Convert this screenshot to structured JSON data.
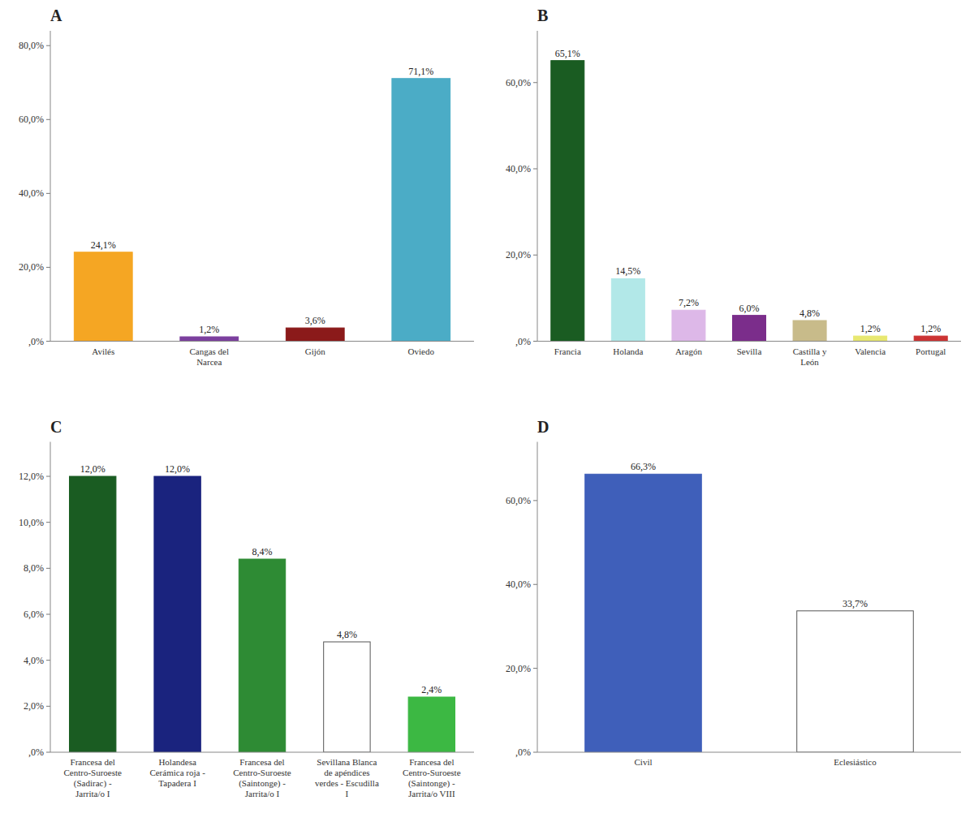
{
  "chart_data": [
    {
      "type": "bar",
      "title": "A",
      "categories": [
        "Avilés",
        "Cangas del\nNarcea",
        "Gijón",
        "Oviedo"
      ],
      "values": [
        24.1,
        1.2,
        3.6,
        71.1
      ],
      "value_labels": [
        "24,1%",
        "1,2%",
        "3,6%",
        "71,1%"
      ],
      "colors": [
        "#F5A623",
        "#7B3F9E",
        "#8B1A1A",
        "#4BACC6"
      ],
      "ylim": [
        0,
        84
      ],
      "yticks": [
        {
          "value": 0,
          "label": ",0%"
        },
        {
          "value": 20,
          "label": "20,0%"
        },
        {
          "value": 40,
          "label": "40,0%"
        },
        {
          "value": 60,
          "label": "60,0%"
        },
        {
          "value": 80,
          "label": "80,0%"
        }
      ],
      "data_labels": true,
      "grid": false
    },
    {
      "type": "bar",
      "title": "B",
      "categories": [
        "Francia",
        "Holanda",
        "Aragón",
        "Sevilla",
        "Castilla y\nLeón",
        "Valencia",
        "Portugal"
      ],
      "values": [
        65.1,
        14.5,
        7.2,
        6.0,
        4.8,
        1.2,
        1.2
      ],
      "value_labels": [
        "65,1%",
        "14,5%",
        "7,2%",
        "6,0%",
        "4,8%",
        "1,2%",
        "1,2%"
      ],
      "colors": [
        "#1A5C22",
        "#B2E8E8",
        "#DDB8E8",
        "#7B2D8B",
        "#C8BB8A",
        "#E8E870",
        "#CC3333"
      ],
      "ylim": [
        0,
        72
      ],
      "yticks": [
        {
          "value": 0,
          "label": ",0%"
        },
        {
          "value": 20,
          "label": "20,0%"
        },
        {
          "value": 40,
          "label": "40,0%"
        },
        {
          "value": 60,
          "label": "60,0%"
        }
      ],
      "data_labels": true,
      "grid": false
    },
    {
      "type": "bar",
      "title": "C",
      "categories": [
        "Francesa del\nCentro-Suroeste\n(Sadirac) -\nJarrita/o I",
        "Holandesa\nCerámica roja -\nTapadera I",
        "Francesa del\nCentro-Suroeste\n(Saintonge) -\nJarrita/o I",
        "Sevillana Blanca\nde apéndices\nverdes - Escudilla\nI",
        "Francesa del\nCentro-Suroeste\n(Saintonge) -\nJarrita/o VIII"
      ],
      "values": [
        12.0,
        12.0,
        8.4,
        4.8,
        2.4
      ],
      "value_labels": [
        "12,0%",
        "12,0%",
        "8,4%",
        "4,8%",
        "2,4%"
      ],
      "colors": [
        "#1A5C22",
        "#1A237E",
        "#2E8B34",
        "#FFFFFF",
        "#3CB843"
      ],
      "ylim": [
        0,
        13.5
      ],
      "yticks": [
        {
          "value": 0,
          "label": ",0%"
        },
        {
          "value": 2,
          "label": "2,0%"
        },
        {
          "value": 4,
          "label": "4,0%"
        },
        {
          "value": 6,
          "label": "6,0%"
        },
        {
          "value": 8,
          "label": "8,0%"
        },
        {
          "value": 10,
          "label": "10,0%"
        },
        {
          "value": 12,
          "label": "12,0%"
        }
      ],
      "data_labels": true,
      "grid": false
    },
    {
      "type": "bar",
      "title": "D",
      "categories": [
        "Civil",
        "Eclesiástico"
      ],
      "values": [
        66.3,
        33.7
      ],
      "value_labels": [
        "66,3%",
        "33,7%"
      ],
      "colors": [
        "#3F5FBA",
        "#FFFFFF"
      ],
      "ylim": [
        0,
        74
      ],
      "yticks": [
        {
          "value": 0,
          "label": ",0%"
        },
        {
          "value": 20,
          "label": "20,0%"
        },
        {
          "value": 40,
          "label": "40,0%"
        },
        {
          "value": 60,
          "label": "60,0%"
        }
      ],
      "data_labels": true,
      "grid": false
    }
  ]
}
